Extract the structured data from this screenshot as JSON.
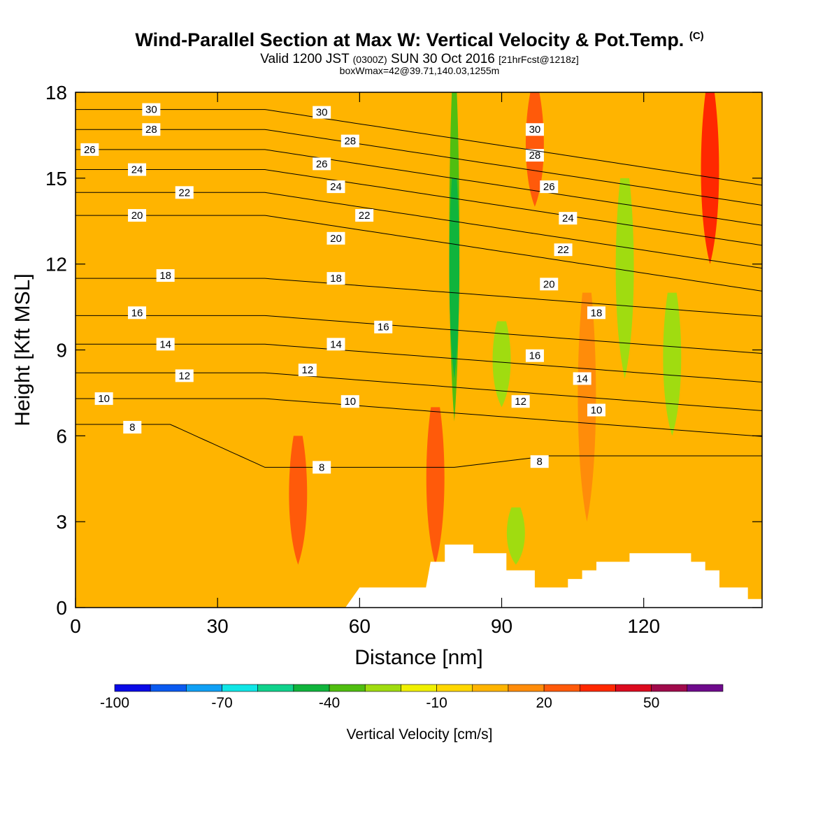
{
  "chart_data": {
    "type": "heatmap",
    "title": "Wind-Parallel Section at Max W: Vertical Velocity & Pot.Temp.",
    "title_mark": "(C)",
    "subtitle_main": "Valid 1200 JST",
    "subtitle_small1": "(0300Z)",
    "subtitle_mid": "SUN 30 Oct 2016",
    "subtitle_small2": "[21hrFcst@1218z]",
    "subtitle2": "boxWmax=42@39.71,140.03,1255m",
    "xlabel": "Distance [nm]",
    "ylabel": "Height [Kft MSL]",
    "xlim": [
      0,
      145
    ],
    "ylim": [
      0,
      18
    ],
    "x_ticks": [
      0,
      30,
      60,
      90,
      120
    ],
    "y_ticks": [
      0,
      3,
      6,
      9,
      12,
      15,
      18
    ],
    "colorbar": {
      "label": "Vertical Velocity [cm/s]",
      "tick_labels": [
        "-100",
        "-70",
        "-40",
        "-10",
        "20",
        "50"
      ],
      "tick_values": [
        -100,
        -70,
        -40,
        -10,
        20,
        50
      ],
      "bins": [
        -100,
        -90,
        -80,
        -70,
        -60,
        -50,
        -40,
        -30,
        -20,
        -10,
        0,
        10,
        20,
        30,
        40,
        50,
        60,
        70
      ],
      "colors": [
        "#0a0ae6",
        "#0a5af0",
        "#10a0f5",
        "#10e6e6",
        "#10d28c",
        "#10b43c",
        "#50be10",
        "#a0dc10",
        "#f0f000",
        "#ffd700",
        "#ffb400",
        "#ff8c0a",
        "#ff5a0a",
        "#ff2800",
        "#dc0a1e",
        "#a00a4b",
        "#6e0a8c"
      ]
    },
    "terrain": [
      [
        0,
        0
      ],
      [
        57,
        0
      ],
      [
        60,
        0.7
      ],
      [
        74,
        0.7
      ],
      [
        75,
        1.6
      ],
      [
        78,
        1.6
      ],
      [
        78,
        2.2
      ],
      [
        84,
        2.2
      ],
      [
        84,
        1.9
      ],
      [
        91,
        1.9
      ],
      [
        91,
        1.3
      ],
      [
        97,
        1.3
      ],
      [
        97,
        0.7
      ],
      [
        104,
        0.7
      ],
      [
        104,
        1.0
      ],
      [
        107,
        1.0
      ],
      [
        107,
        1.3
      ],
      [
        110,
        1.3
      ],
      [
        110,
        1.6
      ],
      [
        117,
        1.6
      ],
      [
        117,
        1.9
      ],
      [
        130,
        1.9
      ],
      [
        130,
        1.6
      ],
      [
        133,
        1.6
      ],
      [
        133,
        1.3
      ],
      [
        136,
        1.3
      ],
      [
        136,
        0.7
      ],
      [
        142,
        0.7
      ],
      [
        142,
        0.3
      ],
      [
        145,
        0.3
      ],
      [
        145,
        0
      ]
    ],
    "w_bands": [
      {
        "x": 80,
        "ymin": 6.5,
        "ymax": 18,
        "w": -35
      },
      {
        "x": 80,
        "ymin": 8,
        "ymax": 15,
        "w": -45
      },
      {
        "x": 90,
        "ymin": 7,
        "ymax": 10,
        "w": -25
      },
      {
        "x": 93,
        "ymin": 1.5,
        "ymax": 3.5,
        "w": -25
      },
      {
        "x": 116,
        "ymin": 8,
        "ymax": 15,
        "w": -25
      },
      {
        "x": 126,
        "ymin": 6,
        "ymax": 11,
        "w": -25
      },
      {
        "x": 97,
        "ymin": 14,
        "ymax": 18,
        "w": 25
      },
      {
        "x": 134,
        "ymin": 12,
        "ymax": 18,
        "w": 30
      },
      {
        "x": 47,
        "ymin": 1.5,
        "ymax": 6,
        "w": 20
      },
      {
        "x": 76,
        "ymin": 1.5,
        "ymax": 7,
        "w": 20
      },
      {
        "x": 108,
        "ymin": 3,
        "ymax": 11,
        "w": 15
      }
    ],
    "theta_levels": [
      {
        "value": 8,
        "base_height": 6.4,
        "labels": [
          [
            12,
            6.3
          ],
          [
            52,
            4.9
          ],
          [
            98,
            5.1
          ]
        ]
      },
      {
        "value": 10,
        "base_height": 7.3,
        "labels": [
          [
            6,
            7.3
          ],
          [
            58,
            7.2
          ],
          [
            110,
            6.9
          ]
        ]
      },
      {
        "value": 12,
        "base_height": 8.2,
        "labels": [
          [
            23,
            8.1
          ],
          [
            49,
            8.3
          ],
          [
            94,
            7.2
          ]
        ]
      },
      {
        "value": 14,
        "base_height": 9.2,
        "labels": [
          [
            19,
            9.2
          ],
          [
            55,
            9.2
          ],
          [
            107,
            8.0
          ]
        ]
      },
      {
        "value": 16,
        "base_height": 10.2,
        "labels": [
          [
            13,
            10.3
          ],
          [
            65,
            9.8
          ],
          [
            97,
            8.8
          ]
        ]
      },
      {
        "value": 18,
        "base_height": 11.5,
        "labels": [
          [
            19,
            11.6
          ],
          [
            55,
            11.5
          ],
          [
            110,
            10.3
          ]
        ]
      },
      {
        "value": 20,
        "base_height": 13.7,
        "labels": [
          [
            13,
            13.7
          ],
          [
            55,
            12.9
          ],
          [
            100,
            11.3
          ]
        ]
      },
      {
        "value": 22,
        "base_height": 14.5,
        "labels": [
          [
            23,
            14.5
          ],
          [
            61,
            13.7
          ],
          [
            103,
            12.5
          ]
        ]
      },
      {
        "value": 24,
        "base_height": 15.3,
        "labels": [
          [
            13,
            15.3
          ],
          [
            55,
            14.7
          ],
          [
            104,
            13.6
          ]
        ]
      },
      {
        "value": 26,
        "base_height": 16.0,
        "labels": [
          [
            3,
            16.0
          ],
          [
            52,
            15.5
          ],
          [
            100,
            14.7
          ]
        ]
      },
      {
        "value": 28,
        "base_height": 16.7,
        "labels": [
          [
            16,
            16.7
          ],
          [
            58,
            16.3
          ],
          [
            97,
            15.8
          ]
        ]
      },
      {
        "value": 30,
        "base_height": 17.4,
        "labels": [
          [
            16,
            17.4
          ],
          [
            52,
            17.3
          ],
          [
            97,
            16.7
          ]
        ]
      }
    ]
  }
}
